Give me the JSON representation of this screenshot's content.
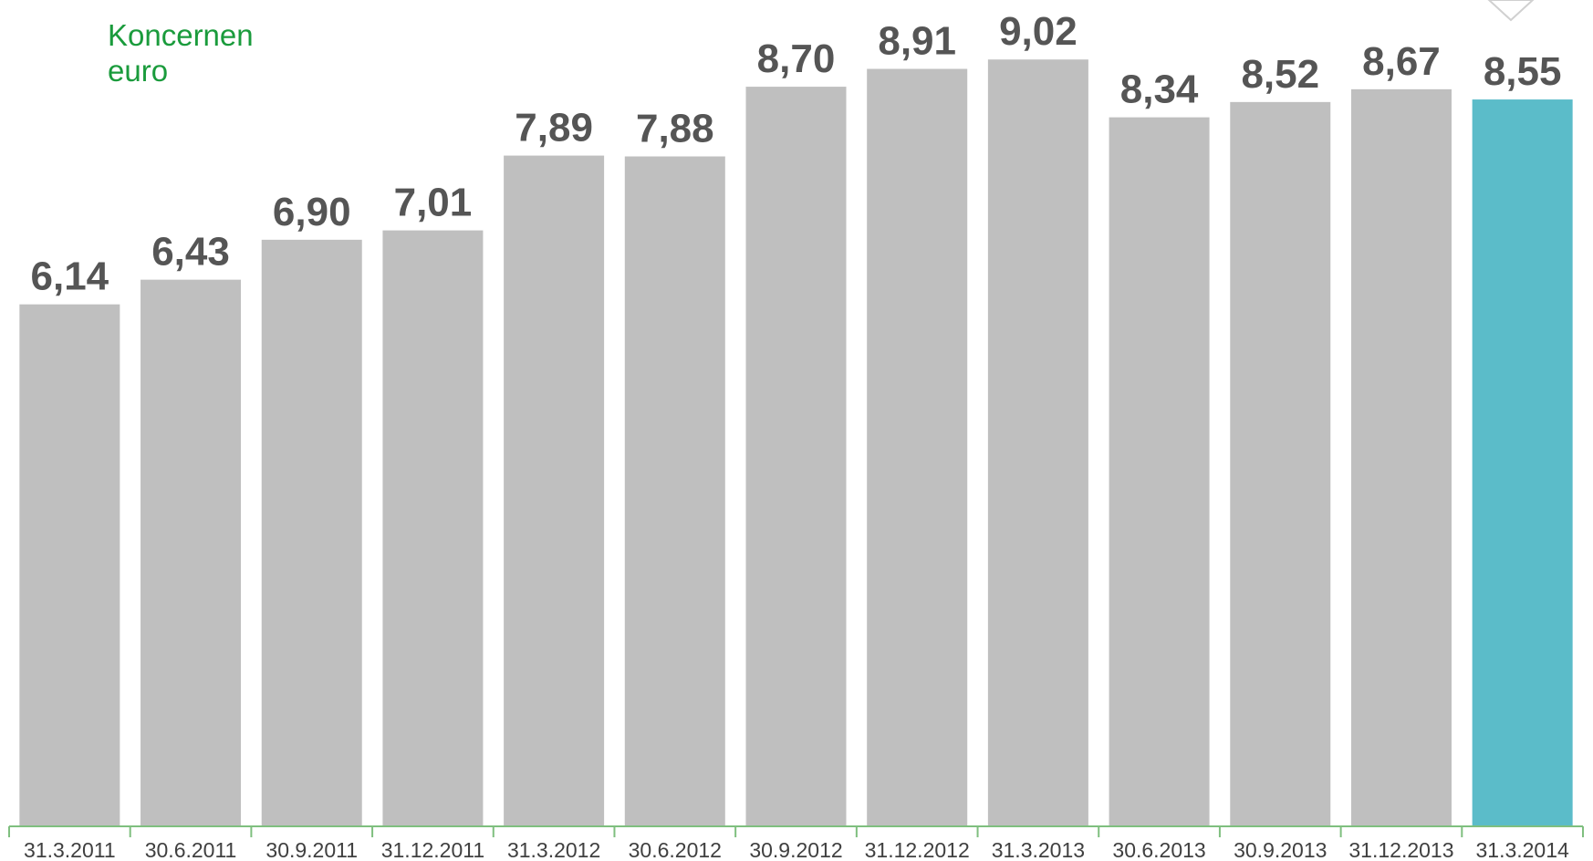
{
  "chart_data": {
    "type": "bar",
    "title": "Koncernen",
    "subtitle": "euro",
    "categories": [
      "31.3.2011",
      "30.6.2011",
      "30.9.2011",
      "31.12.2011",
      "31.3.2012",
      "30.6.2012",
      "30.9.2012",
      "31.12.2012",
      "31.3.2013",
      "30.6.2013",
      "30.9.2013",
      "31.12.2013",
      "31.3.2014"
    ],
    "value_labels": [
      "6,14",
      "6,43",
      "6,90",
      "7,01",
      "7,89",
      "7,88",
      "8,70",
      "8,91",
      "9,02",
      "8,34",
      "8,52",
      "8,67",
      "8,55"
    ],
    "values": [
      6.14,
      6.43,
      6.9,
      7.01,
      7.89,
      7.88,
      8.7,
      8.91,
      9.02,
      8.34,
      8.52,
      8.67,
      8.55
    ],
    "ylim": [
      0,
      9.72
    ],
    "grid": false,
    "colors": {
      "bar": "#bfbfbf",
      "highlight": "#5bbcc9",
      "axis": "#7fbf7f",
      "title": "#1a9b3c",
      "value_label": "#555555"
    },
    "highlight_index": 12
  }
}
